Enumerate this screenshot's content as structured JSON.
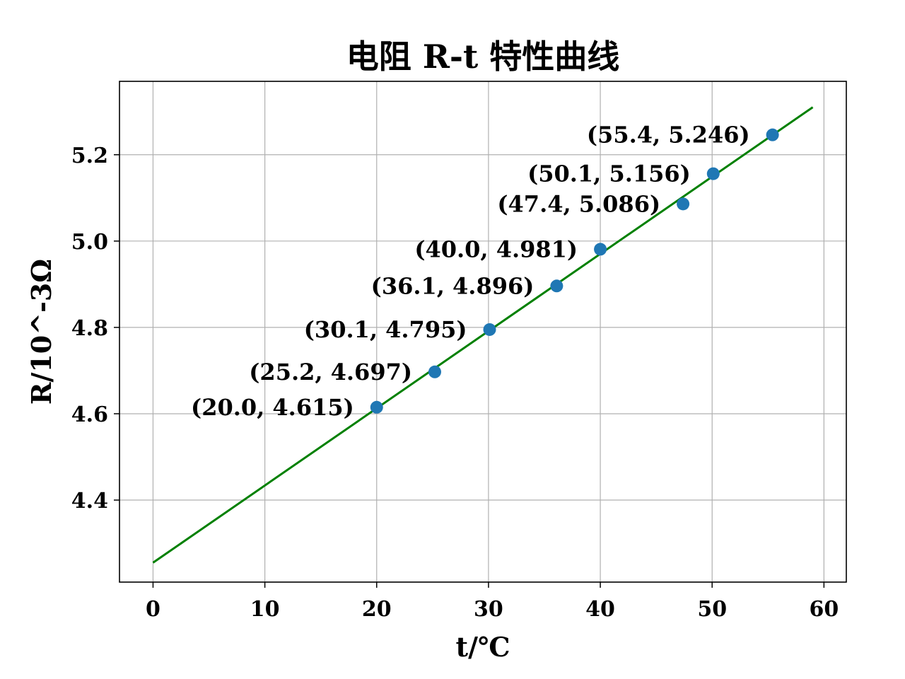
{
  "chart_data": {
    "type": "scatter",
    "title": "电阻 R-t 特性曲线",
    "xlabel": "t/℃",
    "ylabel": "R/10^-3Ω",
    "xlim": [
      -3,
      62
    ],
    "ylim": [
      4.21,
      5.37
    ],
    "xticks": [
      0,
      10,
      20,
      30,
      40,
      50,
      60
    ],
    "yticks": [
      4.4,
      4.6,
      4.8,
      5.0,
      5.2
    ],
    "ytick_labels": [
      "4.4",
      "4.6",
      "4.8",
      "5.0",
      "5.2"
    ],
    "grid": true,
    "series": [
      {
        "kind": "scatter",
        "color": "#1f77b4",
        "x": [
          20.0,
          25.2,
          30.1,
          36.1,
          40.0,
          47.4,
          50.1,
          55.4
        ],
        "y": [
          4.615,
          4.697,
          4.795,
          4.896,
          4.981,
          5.086,
          5.156,
          5.246
        ],
        "labels": [
          "(20.0, 4.615)",
          "(25.2, 4.697)",
          "(30.1, 4.795)",
          "(36.1, 4.896)",
          "(40.0, 4.981)",
          "(47.4, 5.086)",
          "(50.1, 5.156)",
          "(55.4, 5.246)"
        ]
      },
      {
        "kind": "line",
        "color": "#008000",
        "x": [
          0,
          59
        ],
        "y": [
          4.255,
          5.31
        ]
      }
    ]
  }
}
